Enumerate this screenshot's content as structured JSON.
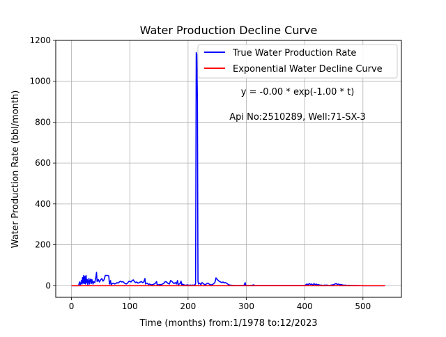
{
  "chart_data": {
    "type": "line",
    "title": "Water Production Decline Curve",
    "xlabel": "Time (months) from:1/1978 to:12/2023",
    "ylabel": "Water Production Rate (bbl/month)",
    "xlim": [
      -27,
      566
    ],
    "ylim": [
      -57,
      1200
    ],
    "xticks": [
      0,
      100,
      200,
      300,
      400,
      500
    ],
    "yticks": [
      0,
      200,
      400,
      600,
      800,
      1000,
      1200
    ],
    "grid": true,
    "legend_position": "top-right",
    "annotations": [
      "y = -0.00 * exp(-1.00 * t)",
      "Api No:2510289, Well:71-SX-3"
    ],
    "series": [
      {
        "name": "True Water Production Rate",
        "color": "#0000ff",
        "points": [
          [
            0,
            0
          ],
          [
            12,
            0
          ],
          [
            14,
            18
          ],
          [
            15,
            5
          ],
          [
            16,
            10
          ],
          [
            17,
            25
          ],
          [
            18,
            8
          ],
          [
            19,
            40
          ],
          [
            20,
            12
          ],
          [
            21,
            50
          ],
          [
            22,
            10
          ],
          [
            23,
            45
          ],
          [
            24,
            8
          ],
          [
            25,
            50
          ],
          [
            26,
            15
          ],
          [
            27,
            30
          ],
          [
            28,
            5
          ],
          [
            29,
            20
          ],
          [
            30,
            35
          ],
          [
            31,
            8
          ],
          [
            32,
            25
          ],
          [
            33,
            32
          ],
          [
            34,
            10
          ],
          [
            35,
            30
          ],
          [
            36,
            18
          ],
          [
            37,
            8
          ],
          [
            38,
            20
          ],
          [
            40,
            15
          ],
          [
            42,
            45
          ],
          [
            43,
            65
          ],
          [
            44,
            20
          ],
          [
            46,
            30
          ],
          [
            48,
            18
          ],
          [
            50,
            28
          ],
          [
            52,
            35
          ],
          [
            54,
            22
          ],
          [
            56,
            30
          ],
          [
            58,
            50
          ],
          [
            60,
            50
          ],
          [
            62,
            50
          ],
          [
            64,
            48
          ],
          [
            65,
            8
          ],
          [
            66,
            12
          ],
          [
            67,
            25
          ],
          [
            68,
            5
          ],
          [
            70,
            10
          ],
          [
            72,
            12
          ],
          [
            74,
            8
          ],
          [
            76,
            10
          ],
          [
            78,
            15
          ],
          [
            80,
            12
          ],
          [
            82,
            18
          ],
          [
            84,
            22
          ],
          [
            86,
            18
          ],
          [
            88,
            20
          ],
          [
            90,
            15
          ],
          [
            92,
            10
          ],
          [
            94,
            8
          ],
          [
            96,
            12
          ],
          [
            98,
            20
          ],
          [
            100,
            22
          ],
          [
            102,
            18
          ],
          [
            104,
            25
          ],
          [
            106,
            28
          ],
          [
            108,
            20
          ],
          [
            110,
            15
          ],
          [
            112,
            18
          ],
          [
            114,
            12
          ],
          [
            116,
            15
          ],
          [
            118,
            18
          ],
          [
            120,
            20
          ],
          [
            122,
            15
          ],
          [
            124,
            18
          ],
          [
            126,
            35
          ],
          [
            127,
            8
          ],
          [
            128,
            10
          ],
          [
            130,
            12
          ],
          [
            132,
            6
          ],
          [
            134,
            8
          ],
          [
            136,
            5
          ],
          [
            138,
            4
          ],
          [
            140,
            6
          ],
          [
            142,
            8
          ],
          [
            144,
            12
          ],
          [
            146,
            20
          ],
          [
            147,
            5
          ],
          [
            150,
            4
          ],
          [
            152,
            6
          ],
          [
            154,
            5
          ],
          [
            156,
            8
          ],
          [
            158,
            10
          ],
          [
            160,
            18
          ],
          [
            162,
            20
          ],
          [
            164,
            15
          ],
          [
            166,
            10
          ],
          [
            168,
            8
          ],
          [
            170,
            25
          ],
          [
            172,
            22
          ],
          [
            174,
            15
          ],
          [
            176,
            10
          ],
          [
            178,
            15
          ],
          [
            180,
            8
          ],
          [
            182,
            25
          ],
          [
            183,
            5
          ],
          [
            186,
            10
          ],
          [
            188,
            22
          ],
          [
            189,
            5
          ],
          [
            190,
            8
          ],
          [
            192,
            5
          ],
          [
            194,
            3
          ],
          [
            196,
            2
          ],
          [
            198,
            4
          ],
          [
            200,
            3
          ],
          [
            202,
            2
          ],
          [
            204,
            3
          ],
          [
            206,
            2
          ],
          [
            208,
            3
          ],
          [
            210,
            2
          ],
          [
            212,
            5
          ],
          [
            213,
            12
          ],
          [
            214,
            1140
          ],
          [
            215,
            1130
          ],
          [
            216,
            900
          ],
          [
            217,
            20
          ],
          [
            218,
            8
          ],
          [
            220,
            12
          ],
          [
            222,
            5
          ],
          [
            224,
            15
          ],
          [
            226,
            10
          ],
          [
            228,
            6
          ],
          [
            230,
            5
          ],
          [
            232,
            10
          ],
          [
            234,
            12
          ],
          [
            236,
            8
          ],
          [
            238,
            5
          ],
          [
            240,
            4
          ],
          [
            242,
            6
          ],
          [
            244,
            10
          ],
          [
            246,
            15
          ],
          [
            248,
            38
          ],
          [
            250,
            30
          ],
          [
            252,
            25
          ],
          [
            254,
            20
          ],
          [
            256,
            18
          ],
          [
            258,
            15
          ],
          [
            260,
            18
          ],
          [
            262,
            14
          ],
          [
            264,
            15
          ],
          [
            266,
            12
          ],
          [
            268,
            8
          ],
          [
            270,
            4
          ],
          [
            272,
            3
          ],
          [
            275,
            2
          ],
          [
            280,
            1
          ],
          [
            290,
            1
          ],
          [
            296,
            2
          ],
          [
            298,
            15
          ],
          [
            299,
            2
          ],
          [
            305,
            1
          ],
          [
            310,
            2
          ],
          [
            312,
            4
          ],
          [
            315,
            1
          ],
          [
            330,
            1
          ],
          [
            360,
            1
          ],
          [
            400,
            1
          ],
          [
            404,
            8
          ],
          [
            406,
            5
          ],
          [
            408,
            10
          ],
          [
            410,
            6
          ],
          [
            412,
            8
          ],
          [
            414,
            3
          ],
          [
            416,
            10
          ],
          [
            418,
            5
          ],
          [
            420,
            8
          ],
          [
            422,
            4
          ],
          [
            424,
            6
          ],
          [
            426,
            2
          ],
          [
            428,
            3
          ],
          [
            430,
            2
          ],
          [
            432,
            1
          ],
          [
            434,
            3
          ],
          [
            436,
            2
          ],
          [
            438,
            3
          ],
          [
            440,
            2
          ],
          [
            442,
            1
          ],
          [
            444,
            2
          ],
          [
            446,
            3
          ],
          [
            448,
            4
          ],
          [
            450,
            5
          ],
          [
            452,
            8
          ],
          [
            454,
            10
          ],
          [
            456,
            6
          ],
          [
            458,
            8
          ],
          [
            460,
            5
          ],
          [
            462,
            6
          ],
          [
            464,
            4
          ],
          [
            466,
            3
          ],
          [
            468,
            2
          ],
          [
            470,
            3
          ],
          [
            472,
            1
          ],
          [
            476,
            2
          ],
          [
            480,
            1
          ],
          [
            490,
            1
          ],
          [
            500,
            0
          ],
          [
            520,
            0
          ],
          [
            538,
            0
          ]
        ]
      },
      {
        "name": "Exponential Water Decline Curve",
        "color": "#ff0000",
        "points": [
          [
            0,
            0
          ],
          [
            538,
            0
          ]
        ]
      }
    ]
  }
}
